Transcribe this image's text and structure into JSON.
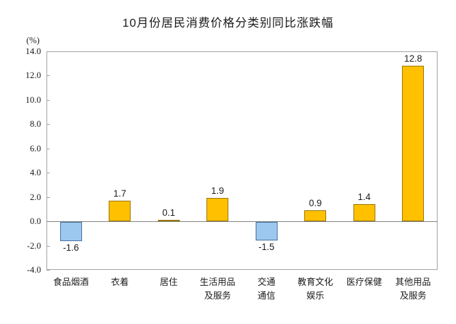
{
  "chart_data": {
    "type": "bar",
    "title": "10月份居民消费价格分类别同比涨跌幅",
    "ylabel": "(%)",
    "ylim": [
      -4.0,
      14.0
    ],
    "ytick_labels": [
      "14.0",
      "12.0",
      "10.0",
      "8.0",
      "6.0",
      "4.0",
      "2.0",
      "0.0",
      "-2.0",
      "-4.0"
    ],
    "yticks": [
      14.0,
      12.0,
      10.0,
      8.0,
      6.0,
      4.0,
      2.0,
      0.0,
      -2.0,
      -4.0
    ],
    "categories": [
      "食品烟酒",
      "衣着",
      "居住",
      "生活用品及服务",
      "交通通信",
      "教育文化娱乐",
      "医疗保健",
      "其他用品及服务"
    ],
    "category_lines": [
      [
        "食品烟酒"
      ],
      [
        "衣着"
      ],
      [
        "居住"
      ],
      [
        "生活用品",
        "及服务"
      ],
      [
        "交通",
        "通信"
      ],
      [
        "教育文化",
        "娱乐"
      ],
      [
        "医疗保健"
      ],
      [
        "其他用品",
        "及服务"
      ]
    ],
    "values": [
      -1.6,
      1.7,
      0.1,
      1.9,
      -1.5,
      0.9,
      1.4,
      12.8
    ],
    "data_labels": [
      "-1.6",
      "1.7",
      "0.1",
      "1.9",
      "-1.5",
      "0.9",
      "1.4",
      "12.8"
    ],
    "grid": false,
    "legend": "none"
  },
  "colors": {
    "positive_fill": "#FFC000",
    "positive_border": "#997300",
    "negative_fill": "#9CC7EF",
    "negative_border": "#41719C",
    "plot_border": "#A0A0A0",
    "zero_line": "#808080",
    "text": "#1A1A1A"
  }
}
